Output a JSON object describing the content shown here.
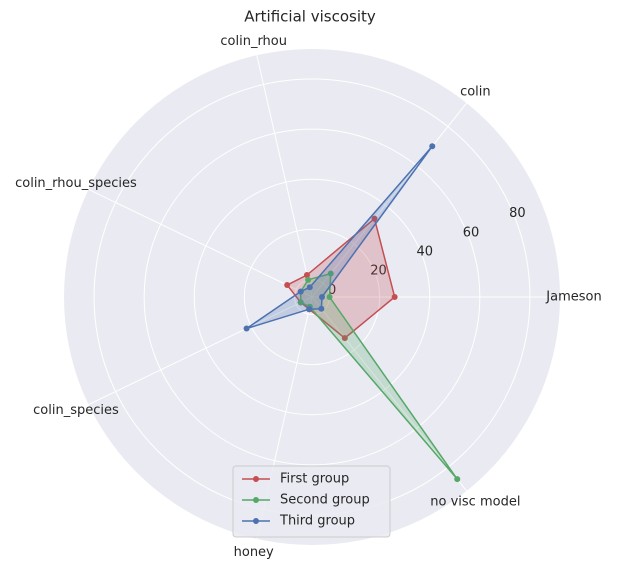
{
  "chart_data": {
    "type": "radar",
    "title": "Artificial viscosity",
    "categories": [
      "Jameson",
      "colin",
      "colin_rhou",
      "colin_rhou_species",
      "colin_species",
      "honey",
      "no visc model"
    ],
    "series": [
      {
        "name": "First group",
        "color": "#c44e52",
        "values": [
          26,
          33,
          2,
          4,
          -2,
          -2,
          14
        ]
      },
      {
        "name": "Second group",
        "color": "#55a868",
        "values": [
          0,
          5,
          0,
          -2,
          -2,
          -3,
          86
        ]
      },
      {
        "name": "Third group",
        "color": "#4c72b0",
        "values": [
          -3,
          70,
          -3,
          -2,
          22,
          -2,
          -1
        ]
      }
    ],
    "ylim": [
      -7,
      92
    ],
    "yticks": [
      0,
      20,
      40,
      60,
      80
    ],
    "grid": true,
    "legend": "lower center"
  }
}
